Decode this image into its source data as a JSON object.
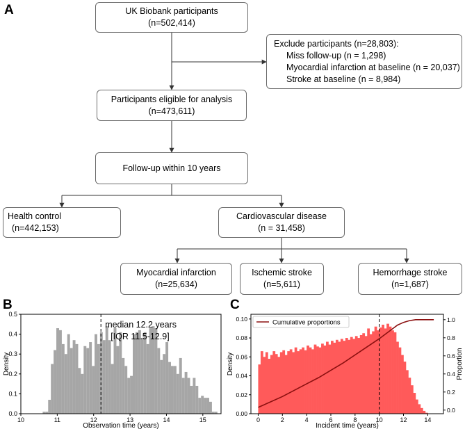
{
  "panel_a": {
    "letter": "A",
    "participants": {
      "title": "UK Biobank participants",
      "n": "(n=502,414)"
    },
    "exclude": {
      "title": "Exclude participants (n=28,803):",
      "items": [
        "Miss follow-up (n = 1,298)",
        "Myocardial infarction at baseline (n = 20,037)",
        "Stroke at baseline (n = 8,984)"
      ]
    },
    "eligible": {
      "title": "Participants eligible for analysis",
      "n": "(n=473,611)"
    },
    "followup": {
      "title": "Follow-up within 10 years"
    },
    "health_control": {
      "title": "Health control",
      "n": "(n=442,153)"
    },
    "cvd": {
      "title": "Cardiovascular disease",
      "n": "(n = 31,458)"
    },
    "mi": {
      "title": "Myocardial infarction",
      "n": "(n=25,634)"
    },
    "ischemic": {
      "title": "Ischemic stroke",
      "n": "(n=5,611)"
    },
    "hemorrhage": {
      "title": "Hemorrhage stroke",
      "n": "(n=1,687)"
    }
  },
  "chart_data": [
    {
      "panel": "B",
      "type": "bar",
      "xlabel": "Observation time (years)",
      "ylabel": "Density",
      "xlim": [
        10,
        15.5
      ],
      "ylim": [
        0,
        0.5
      ],
      "xticks": [
        10,
        11,
        12,
        13,
        14,
        15
      ],
      "yticks": [
        0.0,
        0.1,
        0.2,
        0.3,
        0.4,
        0.5
      ],
      "color": "#a6a6a6",
      "bin_start": 10.6,
      "bin_width": 0.075,
      "values": [
        0.01,
        0.01,
        0.07,
        0.25,
        0.32,
        0.43,
        0.42,
        0.35,
        0.3,
        0.4,
        0.33,
        0.37,
        0.35,
        0.23,
        0.2,
        0.34,
        0.33,
        0.36,
        0.24,
        0.4,
        0.35,
        0.41,
        0.37,
        0.44,
        0.37,
        0.25,
        0.43,
        0.34,
        0.41,
        0.28,
        0.24,
        0.18,
        0.19,
        0.4,
        0.41,
        0.42,
        0.38,
        0.41,
        0.35,
        0.43,
        0.44,
        0.43,
        0.33,
        0.27,
        0.3,
        0.36,
        0.26,
        0.24,
        0.24,
        0.2,
        0.28,
        0.18,
        0.21,
        0.18,
        0.14,
        0.18,
        0.14,
        0.08,
        0.09,
        0.08,
        0.08,
        0.06,
        0.01,
        0.01,
        0,
        0,
        0,
        0,
        0,
        0,
        0,
        0,
        0,
        0,
        0,
        0,
        0,
        0,
        0,
        0,
        0.02,
        0.04,
        0.02
      ],
      "median_x": 12.2,
      "annotation": [
        "median 12.2 years",
        "[IQR 11.5-12.9]"
      ]
    },
    {
      "panel": "C",
      "type": "bar",
      "xlabel": "Incident time (years)",
      "ylabel": "Density",
      "y2label": "Proportion",
      "xlim": [
        -0.6,
        15.3
      ],
      "ylim": [
        0,
        0.105
      ],
      "y2lim": [
        -0.04,
        1.06
      ],
      "xticks": [
        0,
        2,
        4,
        6,
        8,
        10,
        12,
        14
      ],
      "yticks": [
        0.0,
        0.02,
        0.04,
        0.06,
        0.08,
        0.1
      ],
      "y2ticks": [
        0.0,
        0.2,
        0.4,
        0.6,
        0.8,
        1.0
      ],
      "color": "#ff5a5a",
      "line_color": "#8b1010",
      "bin_start": 0,
      "bin_width": 0.2,
      "values": [
        0.052,
        0.066,
        0.06,
        0.065,
        0.058,
        0.062,
        0.066,
        0.063,
        0.06,
        0.065,
        0.067,
        0.062,
        0.066,
        0.068,
        0.065,
        0.07,
        0.066,
        0.068,
        0.07,
        0.067,
        0.072,
        0.07,
        0.068,
        0.073,
        0.071,
        0.07,
        0.074,
        0.072,
        0.076,
        0.073,
        0.077,
        0.075,
        0.078,
        0.076,
        0.079,
        0.077,
        0.08,
        0.078,
        0.081,
        0.079,
        0.082,
        0.08,
        0.083,
        0.085,
        0.082,
        0.09,
        0.084,
        0.087,
        0.092,
        0.088,
        0.091,
        0.094,
        0.09,
        0.095,
        0.092,
        0.088,
        0.086,
        0.076,
        0.07,
        0.062,
        0.055,
        0.046,
        0.038,
        0.03,
        0.022,
        0.015,
        0.01,
        0.006,
        0.003,
        0.001
      ],
      "cumulative": {
        "name": "Cumulative proportions",
        "x": [
          0,
          1,
          2,
          3,
          4,
          5,
          6,
          7,
          8,
          9,
          10,
          11,
          11.5,
          12,
          12.5,
          13,
          14,
          14.5
        ],
        "y": [
          0.03,
          0.09,
          0.15,
          0.22,
          0.29,
          0.36,
          0.44,
          0.52,
          0.61,
          0.7,
          0.79,
          0.89,
          0.94,
          0.97,
          0.99,
          1.0,
          1.0,
          1.0
        ]
      },
      "vline_x": 10
    }
  ]
}
